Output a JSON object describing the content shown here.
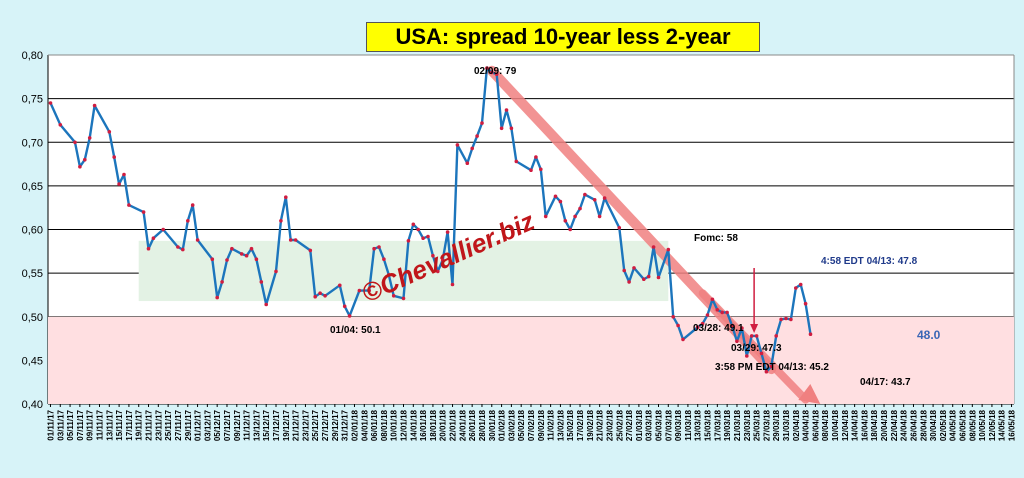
{
  "chart_data": {
    "type": "line",
    "title": "USA: spread 10-year less 2-year",
    "ylim": [
      0.4,
      0.8
    ],
    "yticks": [
      "0,80",
      "0,75",
      "0,70",
      "0,65",
      "0,60",
      "0,55",
      "0,50",
      "0,45",
      "0,40"
    ],
    "xticks": [
      "01/11/17",
      "03/11/17",
      "05/11/17",
      "07/11/17",
      "09/11/17",
      "11/11/17",
      "13/11/17",
      "15/11/17",
      "17/11/17",
      "19/11/17",
      "21/11/17",
      "23/11/17",
      "25/11/17",
      "27/11/17",
      "29/11/17",
      "01/12/17",
      "03/12/17",
      "05/12/17",
      "07/12/17",
      "09/12/17",
      "11/12/17",
      "13/12/17",
      "15/12/17",
      "17/12/17",
      "19/12/17",
      "21/12/17",
      "23/12/17",
      "25/12/17",
      "27/12/17",
      "29/12/17",
      "31/12/17",
      "02/01/18",
      "04/01/18",
      "06/01/18",
      "08/01/18",
      "10/01/18",
      "12/01/18",
      "14/01/18",
      "16/01/18",
      "18/01/18",
      "20/01/18",
      "22/01/18",
      "24/01/18",
      "26/01/18",
      "28/01/18",
      "30/01/18",
      "01/02/18",
      "03/02/18",
      "05/02/18",
      "07/02/18",
      "09/02/18",
      "11/02/18",
      "13/02/18",
      "15/02/18",
      "17/02/18",
      "19/02/18",
      "21/02/18",
      "23/02/18",
      "25/02/18",
      "27/02/18",
      "01/03/18",
      "03/03/18",
      "05/03/18",
      "07/03/18",
      "09/03/18",
      "11/03/18",
      "13/03/18",
      "15/03/18",
      "17/03/18",
      "19/03/18",
      "21/03/18",
      "23/03/18",
      "25/03/18",
      "27/03/18",
      "29/03/18",
      "31/03/18",
      "02/04/18",
      "04/04/18",
      "06/04/18",
      "08/04/18",
      "10/04/18",
      "12/04/18",
      "14/04/18",
      "16/04/18",
      "18/04/18",
      "20/04/18",
      "22/04/18",
      "24/04/18",
      "26/04/18",
      "28/04/18",
      "30/04/18",
      "02/05/18",
      "04/05/18",
      "06/05/18",
      "08/05/18",
      "10/05/18",
      "12/05/18",
      "14/05/18",
      "16/05/18"
    ],
    "series": [
      {
        "values": [
          [
            1,
            0.745
          ],
          [
            3,
            0.72
          ],
          [
            6,
            0.7
          ],
          [
            7,
            0.672
          ],
          [
            8,
            0.68
          ],
          [
            9,
            0.705
          ],
          [
            10,
            0.742
          ],
          [
            13,
            0.712
          ],
          [
            14,
            0.683
          ],
          [
            15,
            0.652
          ],
          [
            16,
            0.663
          ],
          [
            17,
            0.628
          ],
          [
            20,
            0.62
          ],
          [
            21,
            0.578
          ],
          [
            22,
            0.59
          ],
          [
            24,
            0.6
          ],
          [
            27,
            0.58
          ],
          [
            28,
            0.577
          ],
          [
            29,
            0.61
          ],
          [
            30,
            0.628
          ],
          [
            31,
            0.588
          ],
          [
            34,
            0.566
          ],
          [
            35,
            0.522
          ],
          [
            36,
            0.54
          ],
          [
            37,
            0.565
          ],
          [
            38,
            0.578
          ],
          [
            40,
            0.572
          ],
          [
            41,
            0.57
          ],
          [
            42,
            0.578
          ],
          [
            43,
            0.566
          ],
          [
            44,
            0.54
          ],
          [
            45,
            0.514
          ],
          [
            47,
            0.552
          ],
          [
            48,
            0.61
          ],
          [
            49,
            0.637
          ],
          [
            50,
            0.588
          ],
          [
            51,
            0.588
          ],
          [
            54,
            0.576
          ],
          [
            55,
            0.523
          ],
          [
            56,
            0.527
          ],
          [
            57,
            0.524
          ],
          [
            60,
            0.536
          ],
          [
            61,
            0.512
          ],
          [
            62,
            0.501
          ],
          [
            64,
            0.53
          ],
          [
            66,
            0.53
          ],
          [
            67,
            0.578
          ],
          [
            68,
            0.58
          ],
          [
            69,
            0.566
          ],
          [
            70,
            0.548
          ],
          [
            71,
            0.524
          ],
          [
            73,
            0.521
          ],
          [
            74,
            0.587
          ],
          [
            75,
            0.606
          ],
          [
            76,
            0.6
          ],
          [
            77,
            0.59
          ],
          [
            78,
            0.592
          ],
          [
            79,
            0.57
          ],
          [
            80,
            0.552
          ],
          [
            81,
            0.565
          ],
          [
            82,
            0.597
          ],
          [
            83,
            0.537
          ],
          [
            84,
            0.697
          ],
          [
            86,
            0.676
          ],
          [
            87,
            0.693
          ],
          [
            88,
            0.707
          ],
          [
            89,
            0.722
          ],
          [
            90,
            0.785
          ],
          [
            91,
            0.78
          ],
          [
            92,
            0.778
          ],
          [
            93,
            0.716
          ],
          [
            94,
            0.737
          ],
          [
            95,
            0.716
          ],
          [
            96,
            0.678
          ],
          [
            99,
            0.668
          ],
          [
            100,
            0.683
          ],
          [
            101,
            0.669
          ],
          [
            102,
            0.615
          ],
          [
            104,
            0.638
          ],
          [
            105,
            0.632
          ],
          [
            106,
            0.61
          ],
          [
            107,
            0.6
          ],
          [
            108,
            0.615
          ],
          [
            109,
            0.624
          ],
          [
            110,
            0.64
          ],
          [
            112,
            0.634
          ],
          [
            113,
            0.615
          ],
          [
            114,
            0.636
          ],
          [
            117,
            0.602
          ],
          [
            118,
            0.553
          ],
          [
            119,
            0.54
          ],
          [
            120,
            0.556
          ],
          [
            122,
            0.543
          ],
          [
            123,
            0.546
          ],
          [
            124,
            0.58
          ],
          [
            125,
            0.545
          ],
          [
            127,
            0.577
          ],
          [
            128,
            0.5
          ],
          [
            129,
            0.49
          ],
          [
            130,
            0.474
          ],
          [
            133,
            0.488
          ],
          [
            134,
            0.492
          ],
          [
            135,
            0.502
          ],
          [
            136,
            0.52
          ],
          [
            137,
            0.508
          ],
          [
            138,
            0.505
          ],
          [
            139,
            0.505
          ],
          [
            140,
            0.49
          ],
          [
            141,
            0.472
          ],
          [
            142,
            0.487
          ],
          [
            143,
            0.455
          ],
          [
            144,
            0.478
          ],
          [
            145,
            0.478
          ],
          [
            146,
            0.458
          ],
          [
            147,
            0.437
          ],
          [
            148,
            0.443
          ],
          [
            149,
            0.478
          ],
          [
            150,
            0.497
          ],
          [
            151,
            0.498
          ],
          [
            152,
            0.497
          ],
          [
            153,
            0.533
          ],
          [
            154,
            0.537
          ],
          [
            155,
            0.515
          ],
          [
            156,
            0.48
          ]
        ]
      }
    ],
    "annotations": [
      "02/09: 79",
      "01/04: 50.1",
      "Fomc: 58",
      "03/28: 49.1",
      "03/29: 47.3",
      "3:58 PM EDT 04/13: 45.2",
      "4:58 EDT 04/13: 47.8",
      "04/17: 43.7",
      "48.0"
    ],
    "watermark": "©Chevallier.biz",
    "colors": {
      "line": "#1c75bc",
      "marker": "#d01d40",
      "green_band": "#e3f2e4",
      "pink_band": "#ffdfe1",
      "arrow": "#f08080",
      "plot_bg": "#ffffff",
      "last_value": "#3a66b5"
    },
    "grid": true
  }
}
